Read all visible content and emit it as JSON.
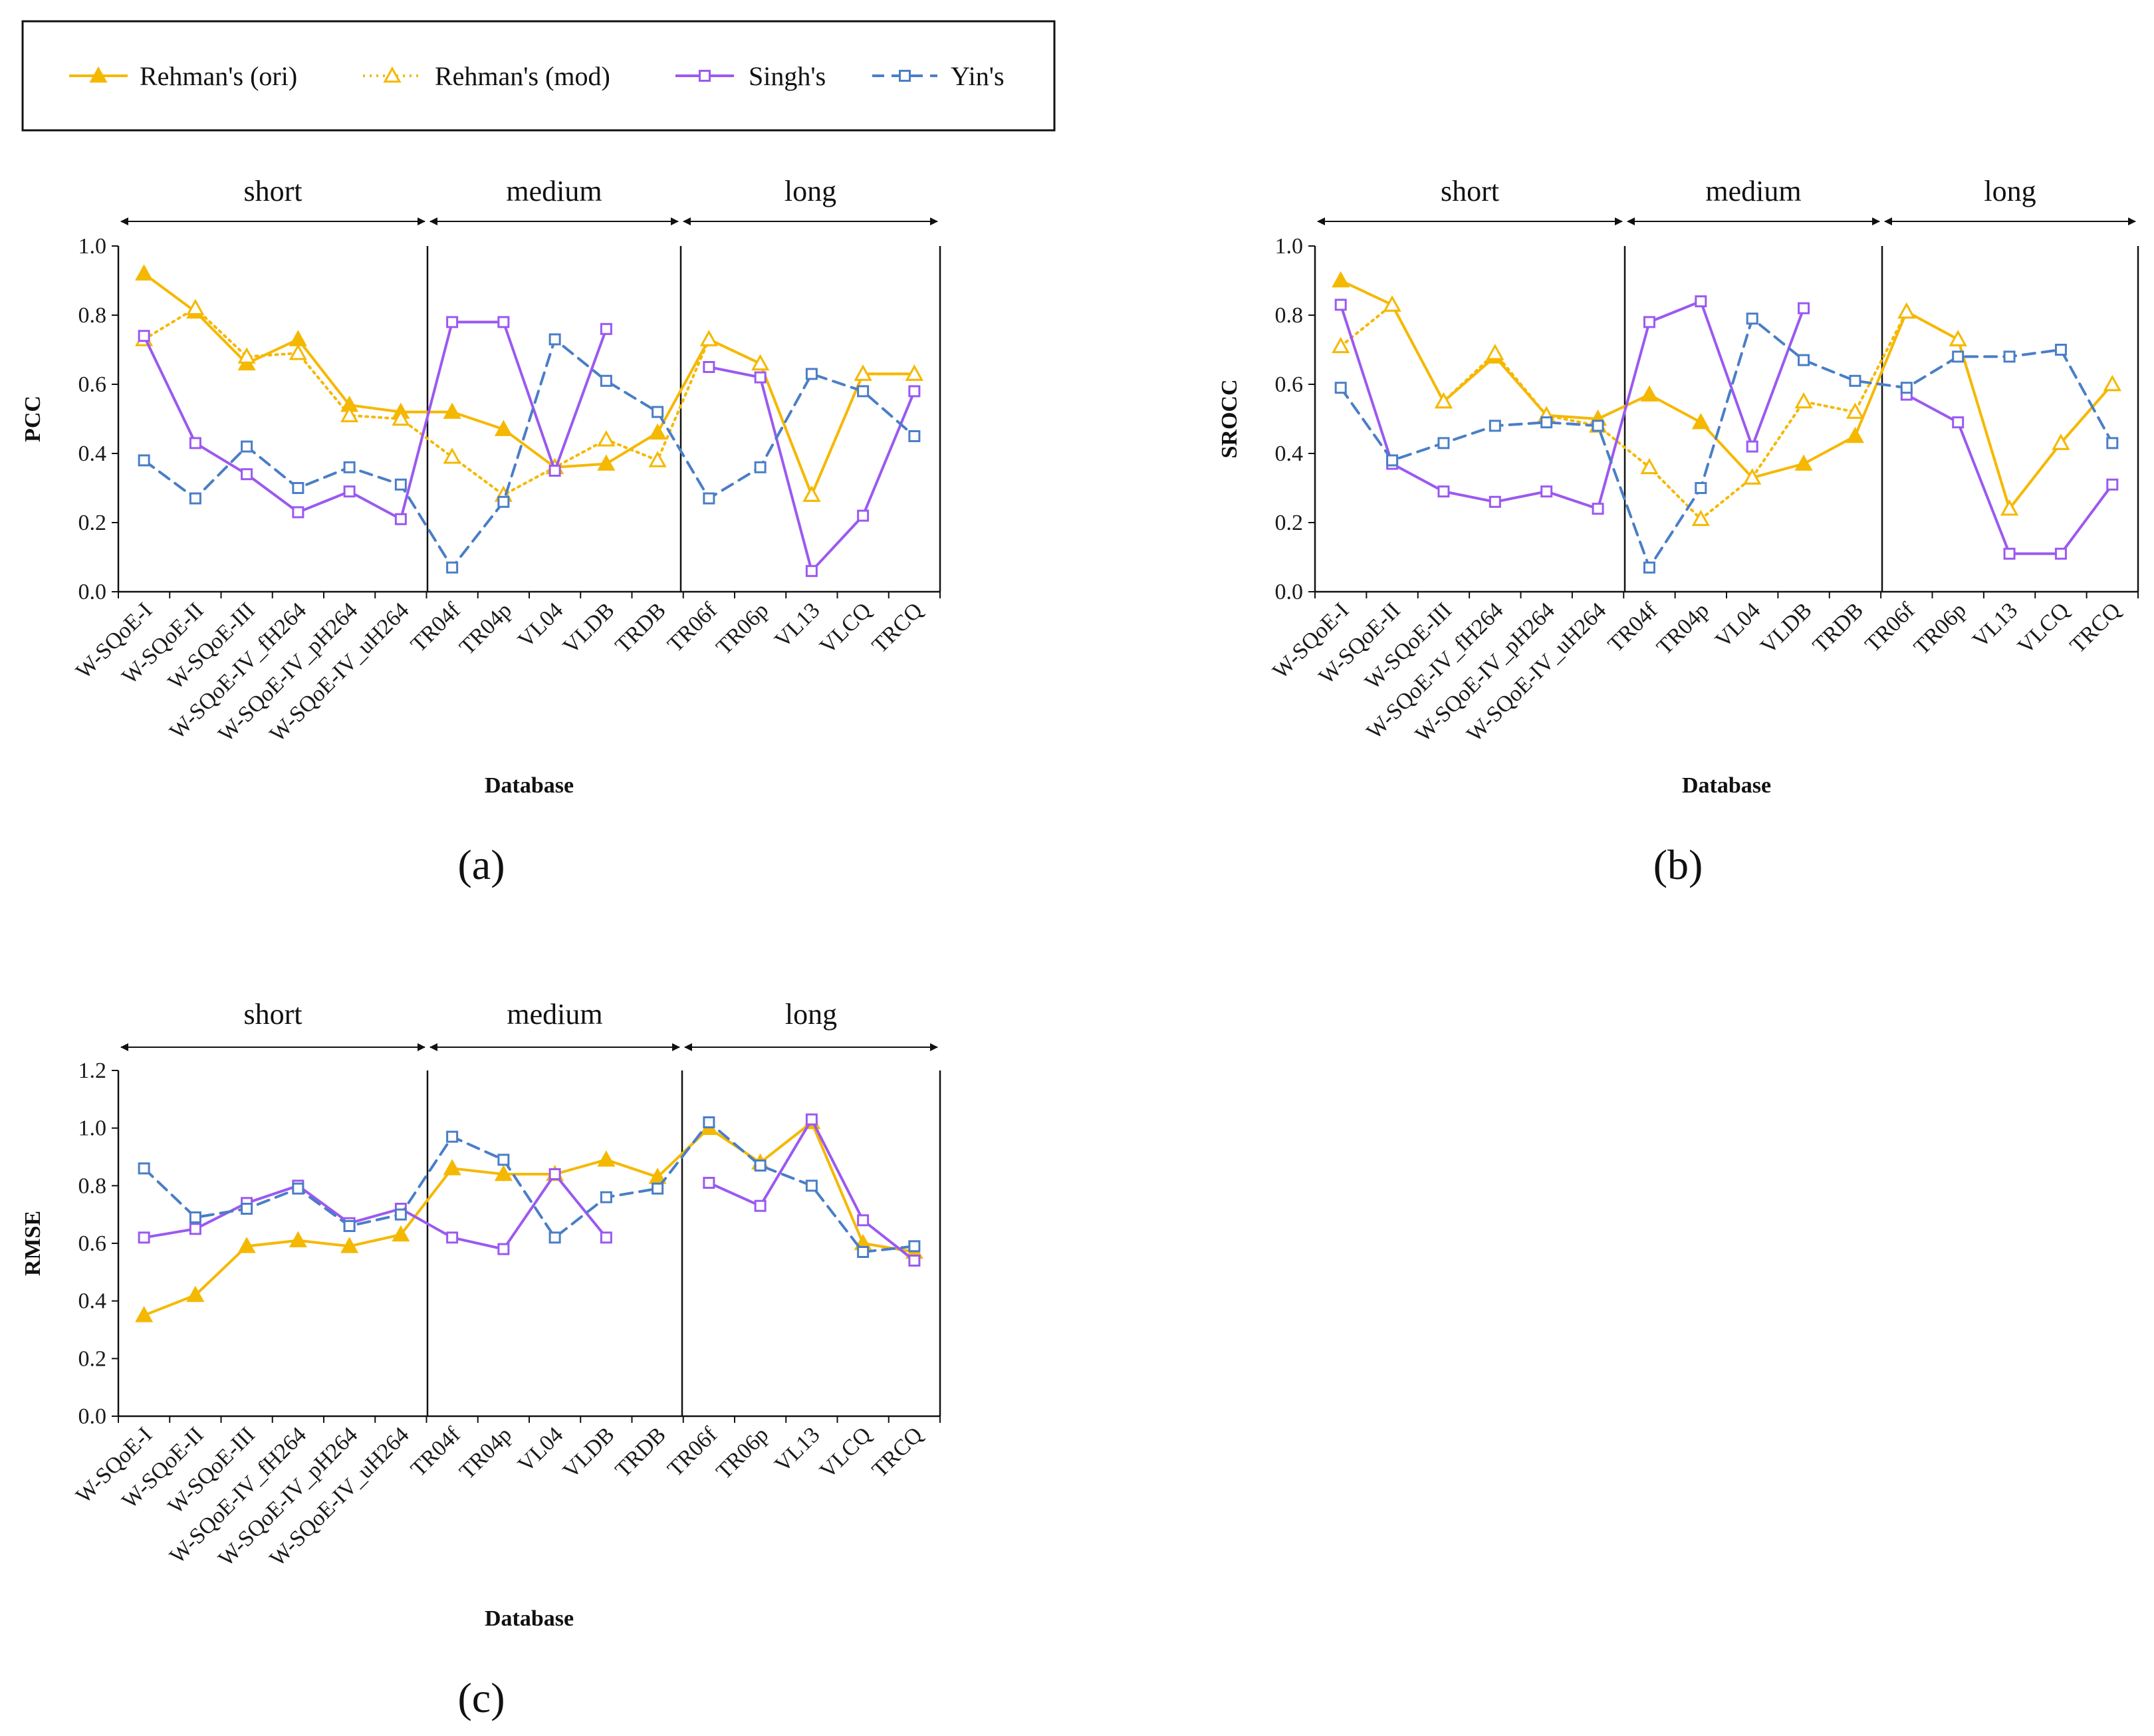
{
  "legend": {
    "items": [
      {
        "name": "Rehman's (ori)",
        "key": "rehman_ori"
      },
      {
        "name": "Rehman's (mod)",
        "key": "rehman_mod"
      },
      {
        "name": "Singh's",
        "key": "singh"
      },
      {
        "name": "Yin's",
        "key": "yin"
      }
    ]
  },
  "styles": {
    "rehman_ori": {
      "color": "#F5B800",
      "dash": "none",
      "marker": "triangle-filled"
    },
    "rehman_mod": {
      "color": "#F5B800",
      "dash": "dotted",
      "marker": "triangle-open"
    },
    "singh": {
      "color": "#9B59F0",
      "dash": "none",
      "marker": "square-open"
    },
    "yin": {
      "color": "#4A7EC6",
      "dash": "dashed",
      "marker": "square-open"
    }
  },
  "chart_data": [
    {
      "type": "line",
      "panel_label": "(a)",
      "ylabel": "PCC",
      "xlabel": "Database",
      "ylim": [
        0,
        1
      ],
      "yticks": [
        "0.0",
        "0.2",
        "0.4",
        "0.6",
        "0.8",
        "1.0"
      ],
      "categories": [
        "W-SQoE-I",
        "W-SQoE-II",
        "W-SQoE-III",
        "W-SQoE-IV_fH264",
        "W-SQoE-IV_pH264",
        "W-SQoE-IV_uH264",
        "TR04f",
        "TR04p",
        "VL04",
        "VLDB",
        "TRDB",
        "TR06f",
        "TR06p",
        "VL13",
        "VLCQ",
        "TRCQ"
      ],
      "segments": [
        "short",
        "medium",
        "long"
      ],
      "series": [
        {
          "name": "Rehman's (ori)",
          "values": [
            0.92,
            0.81,
            0.66,
            0.73,
            0.54,
            0.52,
            0.52,
            0.47,
            0.36,
            0.37,
            0.46,
            0.73,
            0.66,
            0.28,
            0.63,
            0.63
          ]
        },
        {
          "name": "Rehman's (mod)",
          "values": [
            0.73,
            0.82,
            0.68,
            0.69,
            0.51,
            0.5,
            0.39,
            0.28,
            0.36,
            0.44,
            0.38,
            0.73,
            0.66,
            0.28,
            0.63,
            0.63
          ]
        },
        {
          "name": "Singh's",
          "values": [
            0.74,
            0.43,
            0.34,
            0.23,
            0.29,
            0.21,
            0.78,
            0.78,
            0.35,
            0.76,
            null,
            0.65,
            0.62,
            0.06,
            0.22,
            0.58
          ]
        },
        {
          "name": "Yin's",
          "values": [
            0.38,
            0.27,
            0.42,
            0.3,
            0.36,
            0.31,
            0.07,
            0.26,
            0.73,
            0.61,
            0.52,
            0.27,
            0.36,
            0.63,
            0.58,
            0.45
          ]
        }
      ]
    },
    {
      "type": "line",
      "panel_label": "(b)",
      "ylabel": "SROCC",
      "xlabel": "Database",
      "ylim": [
        0,
        1
      ],
      "yticks": [
        "0.0",
        "0.2",
        "0.4",
        "0.6",
        "0.8",
        "1.0"
      ],
      "categories": [
        "W-SQoE-I",
        "W-SQoE-II",
        "W-SQoE-III",
        "W-SQoE-IV_fH264",
        "W-SQoE-IV_pH264",
        "W-SQoE-IV_uH264",
        "TR04f",
        "TR04p",
        "VL04",
        "VLDB",
        "TRDB",
        "TR06f",
        "TR06p",
        "VL13",
        "VLCQ",
        "TRCQ"
      ],
      "segments": [
        "short",
        "medium",
        "long"
      ],
      "series": [
        {
          "name": "Rehman's (ori)",
          "values": [
            0.9,
            0.83,
            0.55,
            0.68,
            0.51,
            0.5,
            0.57,
            0.49,
            0.33,
            0.37,
            0.45,
            0.81,
            0.73,
            0.24,
            0.43,
            0.6
          ]
        },
        {
          "name": "Rehman's (mod)",
          "values": [
            0.71,
            0.83,
            0.55,
            0.69,
            0.51,
            0.48,
            0.36,
            0.21,
            0.33,
            0.55,
            0.52,
            0.81,
            0.73,
            0.24,
            0.43,
            0.6
          ]
        },
        {
          "name": "Singh's",
          "values": [
            0.83,
            0.37,
            0.29,
            0.26,
            0.29,
            0.24,
            0.78,
            0.84,
            0.42,
            0.82,
            null,
            0.57,
            0.49,
            0.11,
            0.11,
            0.31
          ]
        },
        {
          "name": "Yin's",
          "values": [
            0.59,
            0.38,
            0.43,
            0.48,
            0.49,
            0.48,
            0.07,
            0.3,
            0.79,
            0.67,
            0.61,
            0.59,
            0.68,
            0.68,
            0.7,
            0.43
          ]
        }
      ]
    },
    {
      "type": "line",
      "panel_label": "(c)",
      "ylabel": "RMSE",
      "xlabel": "Database",
      "ylim": [
        0,
        1.2
      ],
      "yticks": [
        "0.0",
        "0.2",
        "0.4",
        "0.6",
        "0.8",
        "1.0",
        "1.2"
      ],
      "categories": [
        "W-SQoE-I",
        "W-SQoE-II",
        "W-SQoE-III",
        "W-SQoE-IV_fH264",
        "W-SQoE-IV_pH264",
        "W-SQoE-IV_uH264",
        "TR04f",
        "TR04p",
        "VL04",
        "VLDB",
        "TRDB",
        "TR06f",
        "TR06p",
        "VL13",
        "VLCQ",
        "TRCQ"
      ],
      "segments": [
        "short",
        "medium",
        "long"
      ],
      "series": [
        {
          "name": "Rehman's (ori)",
          "values": [
            0.35,
            0.42,
            0.59,
            0.61,
            0.59,
            0.63,
            0.86,
            0.84,
            0.84,
            0.89,
            0.83,
            1.0,
            0.88,
            1.02,
            0.6,
            0.57
          ]
        },
        {
          "name": "Singh's",
          "values": [
            0.62,
            0.65,
            0.74,
            0.8,
            0.67,
            0.72,
            0.62,
            0.58,
            0.84,
            0.62,
            null,
            0.81,
            0.73,
            1.03,
            0.68,
            0.54
          ]
        },
        {
          "name": "Yin's",
          "values": [
            0.86,
            0.69,
            0.72,
            0.79,
            0.66,
            0.7,
            0.97,
            0.89,
            0.62,
            0.76,
            0.79,
            1.02,
            0.87,
            0.8,
            0.57,
            0.59
          ]
        }
      ]
    }
  ]
}
